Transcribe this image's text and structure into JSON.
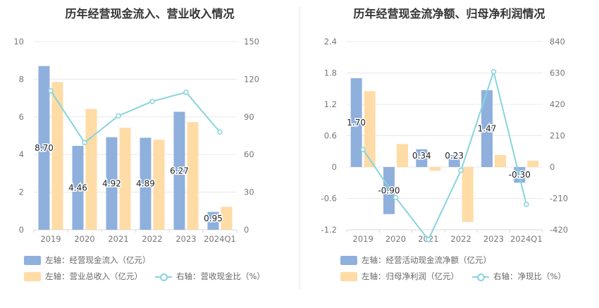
{
  "chart_data": [
    {
      "type": "bar",
      "title": "历年经营现金流入、营业收入情况",
      "categories": [
        "2019",
        "2020",
        "2021",
        "2022",
        "2023",
        "2024Q1"
      ],
      "y_left": {
        "ylim": [
          0,
          10
        ],
        "ticks": [
          "0",
          "2",
          "4",
          "6",
          "8",
          "10"
        ]
      },
      "y_right": {
        "ylim": [
          0,
          150
        ],
        "ticks": [
          "0",
          "30",
          "60",
          "90",
          "120",
          "150"
        ]
      },
      "series": [
        {
          "name": "左轴：经营现金流入（亿元）",
          "type": "bar",
          "axis": "left",
          "color": "#8fb0dd",
          "values": [
            8.7,
            4.46,
            4.92,
            4.89,
            6.27,
            0.95
          ],
          "labels": [
            "8.70",
            "4.46",
            "4.92",
            "4.89",
            "6.27",
            "0.95"
          ]
        },
        {
          "name": "左轴：营业总收入（亿元）",
          "type": "bar",
          "axis": "left",
          "color": "#ffdba6",
          "values": [
            7.85,
            6.42,
            5.42,
            4.78,
            5.72,
            1.22
          ]
        },
        {
          "name": "右轴：营收现金比（%）",
          "type": "line",
          "axis": "right",
          "color": "#87d4de",
          "values": [
            110.8,
            69.5,
            90.8,
            102.3,
            109.6,
            77.9
          ]
        }
      ],
      "grid": true,
      "legend_position": "bottom"
    },
    {
      "type": "bar",
      "title": "历年经营现金流净额、归母净利润情况",
      "categories": [
        "2019",
        "2020",
        "2021",
        "2022",
        "2023",
        "2024Q1"
      ],
      "y_left": {
        "ylim": [
          -1.2,
          2.4
        ],
        "ticks": [
          "-1.2",
          "-0.6",
          "0",
          "0.6",
          "1.2",
          "1.8",
          "2.4"
        ]
      },
      "y_right": {
        "ylim": [
          -420,
          840
        ],
        "ticks": [
          "-420",
          "-210",
          "0",
          "210",
          "420",
          "630",
          "840"
        ]
      },
      "series": [
        {
          "name": "左轴：经营活动现金流净额（亿元）",
          "type": "bar",
          "axis": "left",
          "color": "#8fb0dd",
          "values": [
            1.7,
            -0.9,
            0.34,
            0.23,
            1.47,
            -0.3
          ],
          "labels": [
            "1.70",
            "-0.90",
            "0.34",
            "0.23",
            "1.47",
            "-0.30"
          ]
        },
        {
          "name": "左轴：归母净利润（亿元）",
          "type": "bar",
          "axis": "left",
          "color": "#ffdba6",
          "values": [
            1.45,
            0.44,
            -0.07,
            -1.05,
            0.23,
            0.12
          ]
        },
        {
          "name": "右轴：净现比（%）",
          "type": "line",
          "axis": "right",
          "color": "#87d4de",
          "values": [
            117,
            -204,
            -486,
            -22,
            639,
            -250
          ]
        }
      ],
      "grid": true,
      "legend_position": "bottom"
    }
  ]
}
